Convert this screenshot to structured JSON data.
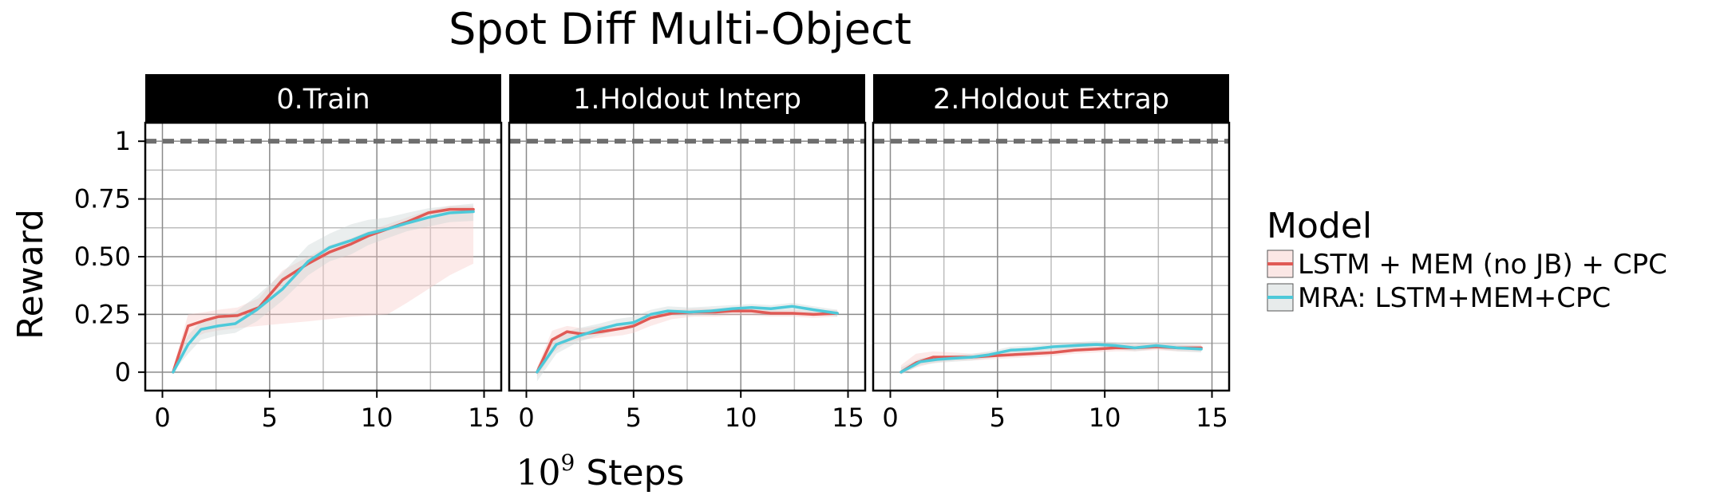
{
  "chart_data": {
    "type": "line",
    "title": "Spot Diff Multi-Object",
    "xlabel_base": "10",
    "xlabel_exp": "9",
    "xlabel_rest": "Steps",
    "ylabel": "Reward",
    "xlim": [
      -0.8,
      15.8
    ],
    "ylim": [
      -0.08,
      1.08
    ],
    "x_ticks": [
      0,
      5,
      10,
      15
    ],
    "x_tick_labels": [
      "0",
      "5",
      "10",
      "15"
    ],
    "y_ticks": [
      0,
      0.25,
      0.5,
      0.75,
      1
    ],
    "y_tick_labels": [
      "0",
      "0.25",
      "0.50",
      "0.75",
      "1"
    ],
    "minor_y_gridlines": [
      0.125,
      0.375,
      0.625,
      0.875
    ],
    "minor_x_gridlines": [
      2.5,
      7.5,
      12.5
    ],
    "reference_line": {
      "y": 1,
      "style": "dashed",
      "color": "#6e6e6e"
    },
    "grid": true,
    "legend": {
      "title": "Model",
      "position": "right",
      "entries": [
        {
          "label": "LSTM + MEM (no JB) + CPC",
          "color": "#e05a55",
          "band_color": "#f7c9c6"
        },
        {
          "label": "MRA: LSTM+MEM+CPC",
          "color": "#4dc9d9",
          "band_color": "#c9d2d2"
        }
      ]
    },
    "panels": [
      {
        "label": "0.Train",
        "series": [
          {
            "legend_index": 0,
            "x": [
              0.5,
              1.2,
              2.0,
              2.6,
              3.5,
              4.5,
              5.6,
              6.8,
              7.8,
              8.8,
              9.6,
              10.5,
              11.4,
              12.4,
              13.4,
              14.5
            ],
            "y": [
              0.0,
              0.2,
              0.225,
              0.24,
              0.245,
              0.28,
              0.4,
              0.47,
              0.52,
              0.555,
              0.59,
              0.62,
              0.65,
              0.69,
              0.705,
              0.705
            ],
            "lower": [
              0.0,
              0.14,
              0.17,
              0.18,
              0.19,
              0.2,
              0.21,
              0.22,
              0.23,
              0.24,
              0.245,
              0.25,
              0.3,
              0.36,
              0.42,
              0.47
            ],
            "upper": [
              0.02,
              0.25,
              0.26,
              0.27,
              0.28,
              0.32,
              0.44,
              0.5,
              0.55,
              0.58,
              0.61,
              0.64,
              0.67,
              0.7,
              0.72,
              0.72
            ]
          },
          {
            "legend_index": 1,
            "x": [
              0.5,
              1.2,
              1.8,
              2.6,
              3.4,
              4.4,
              5.6,
              6.8,
              7.8,
              8.8,
              9.6,
              10.5,
              11.4,
              12.4,
              13.4,
              14.5
            ],
            "y": [
              0.0,
              0.12,
              0.185,
              0.2,
              0.21,
              0.27,
              0.36,
              0.48,
              0.54,
              0.57,
              0.6,
              0.62,
              0.645,
              0.67,
              0.69,
              0.695
            ],
            "lower": [
              0.0,
              0.08,
              0.14,
              0.16,
              0.17,
              0.22,
              0.31,
              0.42,
              0.48,
              0.51,
              0.55,
              0.58,
              0.61,
              0.63,
              0.65,
              0.655
            ],
            "upper": [
              0.02,
              0.16,
              0.22,
              0.24,
              0.26,
              0.33,
              0.43,
              0.55,
              0.6,
              0.64,
              0.66,
              0.67,
              0.69,
              0.71,
              0.72,
              0.73
            ]
          }
        ]
      },
      {
        "label": "1.Holdout Interp",
        "series": [
          {
            "legend_index": 0,
            "x": [
              0.5,
              1.2,
              1.9,
              2.6,
              3.5,
              4.5,
              5.0,
              5.8,
              6.8,
              7.8,
              8.8,
              9.6,
              10.5,
              11.4,
              12.4,
              13.4,
              14.5
            ],
            "y": [
              0.0,
              0.14,
              0.175,
              0.165,
              0.175,
              0.19,
              0.2,
              0.235,
              0.255,
              0.26,
              0.26,
              0.265,
              0.265,
              0.255,
              0.255,
              0.25,
              0.255
            ],
            "lower": [
              -0.02,
              0.08,
              0.13,
              0.14,
              0.15,
              0.16,
              0.17,
              0.2,
              0.23,
              0.24,
              0.24,
              0.245,
              0.245,
              0.24,
              0.24,
              0.235,
              0.24
            ],
            "upper": [
              0.02,
              0.18,
              0.2,
              0.19,
              0.2,
              0.21,
              0.22,
              0.25,
              0.27,
              0.275,
              0.275,
              0.28,
              0.28,
              0.27,
              0.27,
              0.265,
              0.27
            ]
          },
          {
            "legend_index": 1,
            "x": [
              0.5,
              1.4,
              2.4,
              3.4,
              4.2,
              5.0,
              5.8,
              6.6,
              7.6,
              8.6,
              9.6,
              10.5,
              11.4,
              12.4,
              13.4,
              14.5
            ],
            "y": [
              0.0,
              0.12,
              0.155,
              0.185,
              0.205,
              0.215,
              0.25,
              0.265,
              0.26,
              0.265,
              0.275,
              0.28,
              0.275,
              0.285,
              0.27,
              0.255
            ],
            "lower": [
              -0.04,
              0.08,
              0.13,
              0.16,
              0.18,
              0.19,
              0.23,
              0.245,
              0.245,
              0.25,
              0.26,
              0.265,
              0.26,
              0.265,
              0.255,
              0.24
            ],
            "upper": [
              0.02,
              0.16,
              0.19,
              0.21,
              0.23,
              0.24,
              0.27,
              0.285,
              0.28,
              0.285,
              0.29,
              0.295,
              0.29,
              0.3,
              0.285,
              0.27
            ]
          }
        ]
      },
      {
        "label": "2.Holdout Extrap",
        "series": [
          {
            "legend_index": 0,
            "x": [
              0.5,
              1.2,
              2.0,
              3.0,
              3.8,
              4.6,
              5.6,
              6.6,
              7.6,
              8.6,
              9.6,
              10.5,
              11.4,
              12.4,
              13.4,
              14.5
            ],
            "y": [
              0.0,
              0.04,
              0.065,
              0.065,
              0.065,
              0.07,
              0.075,
              0.08,
              0.085,
              0.095,
              0.1,
              0.105,
              0.105,
              0.11,
              0.105,
              0.105
            ],
            "lower": [
              -0.01,
              0.02,
              0.04,
              0.05,
              0.05,
              0.055,
              0.06,
              0.065,
              0.07,
              0.08,
              0.085,
              0.09,
              0.09,
              0.095,
              0.09,
              0.09
            ],
            "upper": [
              0.03,
              0.08,
              0.09,
              0.085,
              0.08,
              0.085,
              0.09,
              0.095,
              0.1,
              0.11,
              0.115,
              0.12,
              0.12,
              0.125,
              0.12,
              0.12
            ]
          },
          {
            "legend_index": 1,
            "x": [
              0.5,
              1.4,
              2.2,
              3.0,
              3.8,
              4.6,
              5.6,
              6.6,
              7.6,
              8.6,
              9.6,
              10.5,
              11.4,
              12.4,
              13.4,
              14.5
            ],
            "y": [
              0.0,
              0.045,
              0.055,
              0.06,
              0.065,
              0.075,
              0.095,
              0.1,
              0.11,
              0.115,
              0.12,
              0.115,
              0.105,
              0.115,
              0.105,
              0.1
            ],
            "lower": [
              -0.01,
              0.03,
              0.04,
              0.045,
              0.05,
              0.06,
              0.08,
              0.085,
              0.095,
              0.1,
              0.105,
              0.1,
              0.09,
              0.1,
              0.09,
              0.085
            ],
            "upper": [
              0.02,
              0.06,
              0.07,
              0.075,
              0.08,
              0.09,
              0.11,
              0.115,
              0.125,
              0.13,
              0.135,
              0.13,
              0.12,
              0.13,
              0.12,
              0.115
            ]
          }
        ]
      }
    ]
  }
}
